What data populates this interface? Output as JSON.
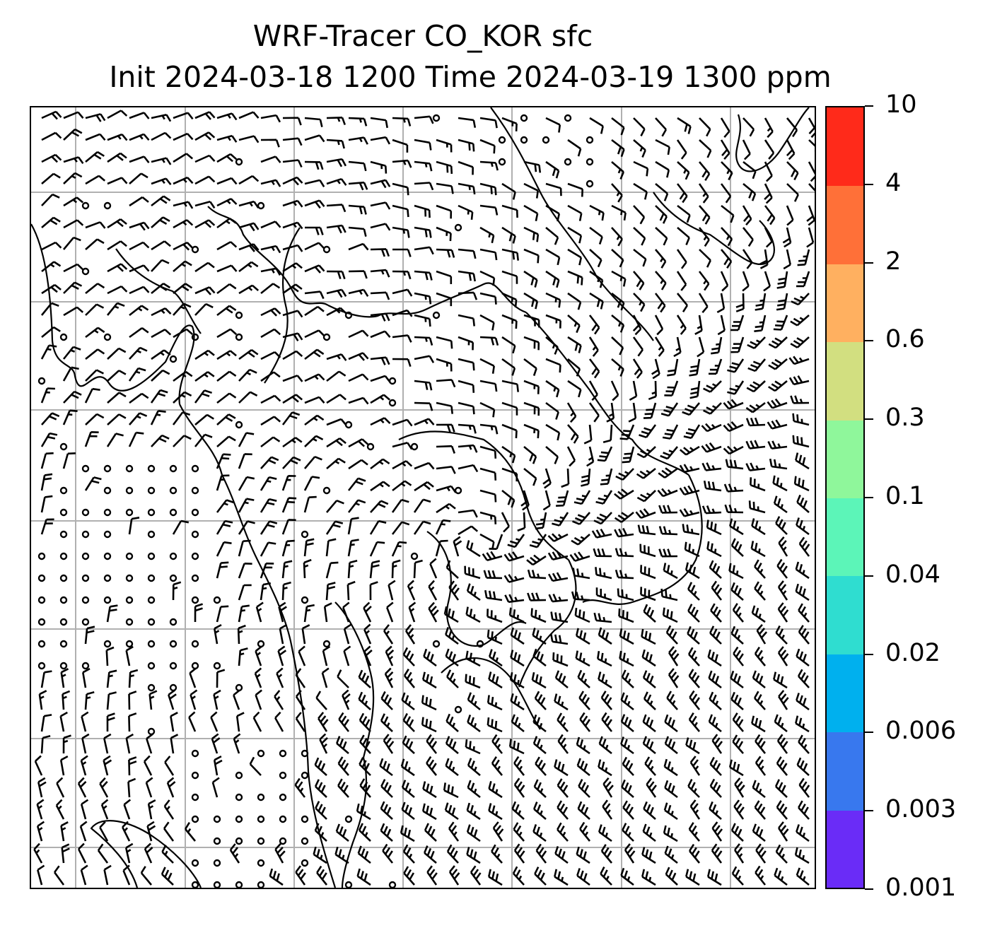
{
  "title": {
    "line1": "WRF-Tracer CO_KOR sfc",
    "line2": "Init 2024-03-18 1200 Time 2024-03-19 1300 ppm"
  },
  "map": {
    "grid_color": "#b0b0b0",
    "line_color": "#000000",
    "coastline": true,
    "gridlines": true,
    "wind_barbs": true
  },
  "colorbar": {
    "levels": [
      "0.001",
      "0.003",
      "0.006",
      "0.02",
      "0.04",
      "0.1",
      "0.3",
      "0.6",
      "2",
      "4",
      "10"
    ],
    "colors": [
      "#6a2cf7",
      "#3878ee",
      "#00b0ee",
      "#2fddd0",
      "#5cf5b8",
      "#8ff79b",
      "#d2df80",
      "#ffb060",
      "#ff7038",
      "#ff2a1a"
    ]
  }
}
